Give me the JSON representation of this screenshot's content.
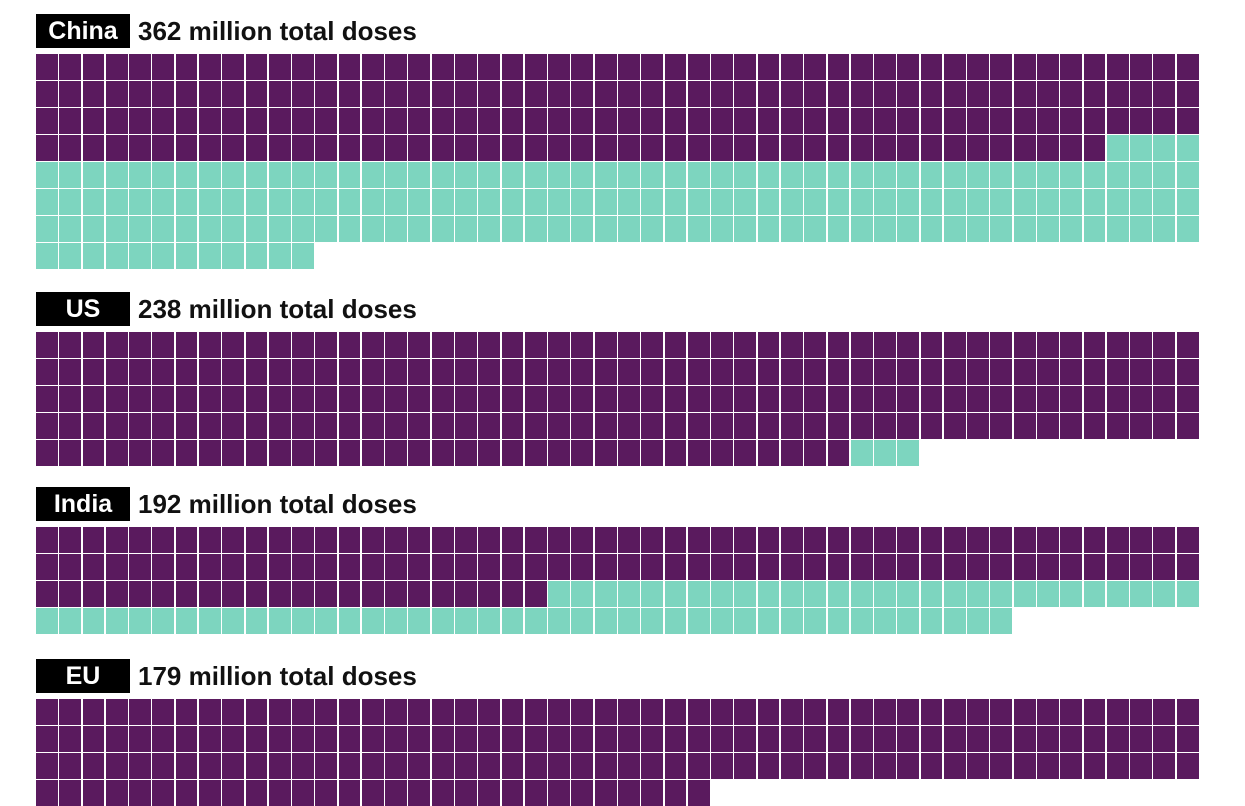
{
  "chart_data": {
    "type": "waffle",
    "units_per_row": 50,
    "colors": {
      "first": "#5a1a5e",
      "second": "#7dd5bf"
    },
    "panels": [
      {
        "label": "China",
        "title": "362 million total doses",
        "total": 362,
        "first": 196,
        "second": 166
      },
      {
        "label": "US",
        "title": "238 million total doses",
        "total": 238,
        "first": 235,
        "second": 3
      },
      {
        "label": "India",
        "title": "192 million total doses",
        "total": 192,
        "first": 122,
        "second": 70
      },
      {
        "label": "EU",
        "title": "179 million total doses",
        "total": 179
      }
    ]
  }
}
